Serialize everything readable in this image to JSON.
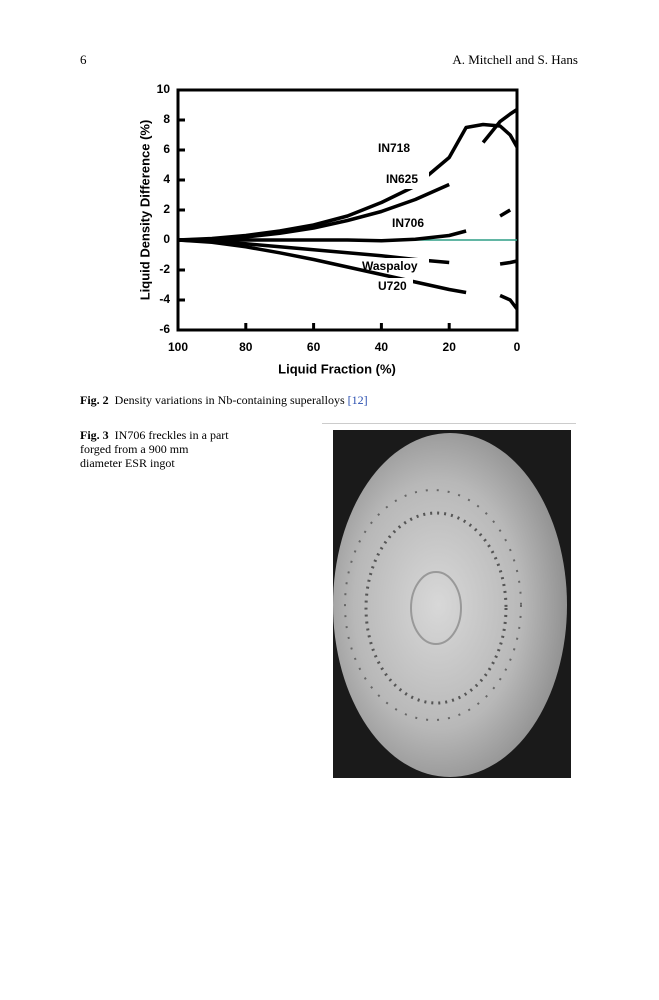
{
  "header": {
    "page_number": "6",
    "authors": "A. Mitchell and S. Hans"
  },
  "chart_data": {
    "type": "line",
    "xlabel": "Liquid Fraction (%)",
    "ylabel": "Liquid Density Difference (%)",
    "x": [
      100,
      90,
      80,
      70,
      60,
      50,
      40,
      30,
      20,
      15,
      10,
      5,
      2,
      0
    ],
    "xlim": [
      100,
      0
    ],
    "xticks": [
      100,
      80,
      60,
      40,
      20,
      0
    ],
    "ylim": [
      -6,
      10
    ],
    "yticks": [
      -6,
      -4,
      -2,
      0,
      2,
      4,
      6,
      8,
      10
    ],
    "reference_line": {
      "value": 0,
      "color": "#2e9e86"
    },
    "series": [
      {
        "name": "IN718",
        "color": "#000000",
        "values": [
          0,
          0.1,
          0.3,
          0.6,
          1.0,
          1.6,
          2.5,
          3.6,
          5.5,
          7.5,
          7.7,
          7.6,
          7.0,
          6.2
        ]
      },
      {
        "name": "IN625",
        "color": "#000000",
        "values": [
          0,
          0.05,
          0.2,
          0.45,
          0.8,
          1.3,
          1.9,
          2.7,
          3.7,
          null,
          6.5,
          7.9,
          8.4,
          8.7
        ]
      },
      {
        "name": "IN706",
        "color": "#000000",
        "values": [
          0,
          0,
          0,
          0,
          0,
          0,
          -0.05,
          0.05,
          0.3,
          0.6,
          null,
          1.6,
          2.0,
          null
        ]
      },
      {
        "name": "Waspaloy",
        "color": "#000000",
        "values": [
          0,
          -0.1,
          -0.25,
          -0.45,
          -0.65,
          -0.85,
          -1.05,
          -1.3,
          -1.5,
          null,
          null,
          -1.6,
          -1.5,
          -1.4
        ]
      },
      {
        "name": "U720",
        "color": "#000000",
        "values": [
          0,
          -0.15,
          -0.45,
          -0.85,
          -1.3,
          -1.8,
          -2.3,
          -2.8,
          -3.3,
          -3.5,
          null,
          -3.7,
          -4.0,
          -4.6
        ]
      }
    ]
  },
  "figure2": {
    "label": "Fig. 2",
    "text": "Density variations in Nb-containing superalloys",
    "ref": "[12]"
  },
  "figure3": {
    "label": "Fig. 3",
    "text": "IN706 freckles in a part forged from a 900 mm diameter ESR ingot"
  }
}
